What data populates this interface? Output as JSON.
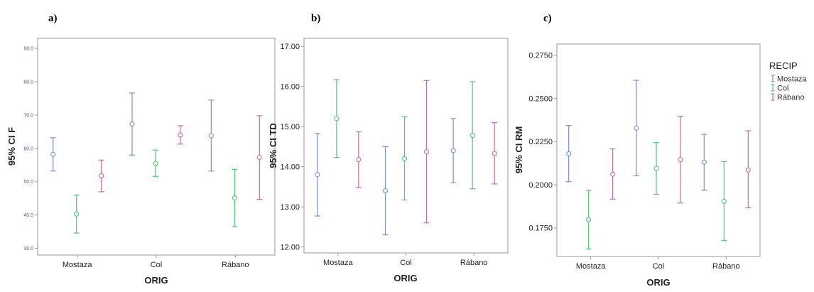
{
  "colors": {
    "Mostaza": "#7b8fd6",
    "Col": "#4cc870",
    "Rábano": "#c76aa8",
    "frame": "#9a9a9a",
    "tick_text": "#333333",
    "plot_bg": "#ffffff"
  },
  "legend": {
    "title": "RECIP",
    "items": [
      "Mostaza",
      "Col",
      "Rábano"
    ]
  },
  "chart_data": [
    {
      "type": "errorbar",
      "panel_label": "a)",
      "xlabel": "ORIG",
      "ylabel": "95% CI F",
      "categories": [
        "Mostaza",
        "Col",
        "Rábano"
      ],
      "ylim": [
        28,
        93
      ],
      "yticks": [
        30,
        40,
        50,
        60,
        70,
        80,
        90
      ],
      "ytick_labels": [
        "30.0",
        "40.0",
        "50.0",
        "60.0",
        "70.0",
        "80.0",
        "90.0"
      ],
      "series": [
        {
          "name": "Mostaza",
          "mean": [
            58.2,
            67.3,
            63.8
          ],
          "lower": [
            53.2,
            58.0,
            53.2
          ],
          "upper": [
            63.2,
            76.6,
            74.5
          ]
        },
        {
          "name": "Col",
          "mean": [
            40.3,
            55.5,
            45.1
          ],
          "lower": [
            34.6,
            51.6,
            36.5
          ],
          "upper": [
            46.0,
            59.5,
            53.7
          ]
        },
        {
          "name": "Rábano",
          "mean": [
            51.8,
            64.0,
            57.3
          ],
          "lower": [
            47.0,
            61.3,
            44.7
          ],
          "upper": [
            56.5,
            66.8,
            69.8
          ]
        }
      ]
    },
    {
      "type": "errorbar",
      "panel_label": "b)",
      "xlabel": "ORIG",
      "ylabel": "95% CI TD",
      "categories": [
        "Mostaza",
        "Col",
        "Rábano"
      ],
      "ylim": [
        11.85,
        17.2
      ],
      "yticks": [
        12,
        13,
        14,
        15,
        16,
        17
      ],
      "ytick_labels": [
        "12.00",
        "13.00",
        "14.00",
        "15.00",
        "16.00",
        "17.00"
      ],
      "series": [
        {
          "name": "Mostaza",
          "mean": [
            13.8,
            13.4,
            14.4
          ],
          "lower": [
            12.77,
            12.3,
            13.6
          ],
          "upper": [
            14.83,
            14.5,
            15.2
          ]
        },
        {
          "name": "Col",
          "mean": [
            15.2,
            14.2,
            14.78
          ],
          "lower": [
            14.23,
            13.17,
            13.45
          ],
          "upper": [
            16.17,
            15.25,
            16.12
          ]
        },
        {
          "name": "Rábano",
          "mean": [
            14.18,
            14.37,
            14.33
          ],
          "lower": [
            13.48,
            12.6,
            13.57
          ],
          "upper": [
            14.87,
            16.15,
            15.1
          ]
        }
      ]
    },
    {
      "type": "errorbar",
      "panel_label": "c)",
      "xlabel": "ORIG",
      "ylabel": "95% CI RM",
      "categories": [
        "Mostaza",
        "Col",
        "Rábano"
      ],
      "ylim": [
        0.1585,
        0.2815
      ],
      "yticks": [
        0.175,
        0.2,
        0.225,
        0.25,
        0.275
      ],
      "ytick_labels": [
        "0.1750",
        "0.2000",
        "0.2250",
        "0.2500",
        "0.2750"
      ],
      "series": [
        {
          "name": "Mostaza",
          "mean": [
            0.218,
            0.2328,
            0.2131
          ],
          "lower": [
            0.2018,
            0.2052,
            0.1968
          ],
          "upper": [
            0.2343,
            0.2605,
            0.2292
          ]
        },
        {
          "name": "Col",
          "mean": [
            0.1798,
            0.2095,
            0.1905
          ],
          "lower": [
            0.1628,
            0.1945,
            0.1677
          ],
          "upper": [
            0.1968,
            0.2245,
            0.2135
          ]
        },
        {
          "name": "Rábano",
          "mean": [
            0.2061,
            0.2146,
            0.2086
          ],
          "lower": [
            0.1917,
            0.1895,
            0.1867
          ],
          "upper": [
            0.2208,
            0.2397,
            0.2313
          ]
        }
      ]
    }
  ]
}
